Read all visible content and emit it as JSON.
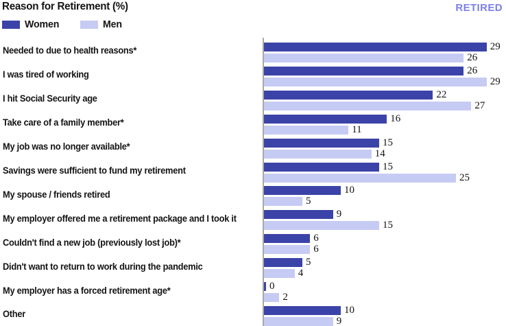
{
  "header": {
    "title": "Reason for Retirement (%)",
    "badge": "RETIRED"
  },
  "legend": [
    {
      "label": "Women",
      "color": "#3b43a8"
    },
    {
      "label": "Men",
      "color": "#c6cbf4"
    }
  ],
  "colors": {
    "women_bar": "#3b43a8",
    "men_bar": "#c6cbf4",
    "badge_text": "#7b80e8",
    "axis_line": "#a8a8a8",
    "value_text": "#101010"
  },
  "chart_data": {
    "type": "bar",
    "orientation": "horizontal",
    "title": "Reason for Retirement (%)",
    "legend_position": "top-left",
    "grid": false,
    "value_labels": true,
    "xlim": [
      0,
      31.5
    ],
    "categories": [
      "Needed to due to health reasons*",
      "I was tired of working",
      "I hit Social Security age",
      "Take care of a family member*",
      "My job was no longer available*",
      "Savings were sufficient to fund my retirement",
      "My spouse / friends retired",
      "My employer offered me a retirement package and I took it",
      "Couldn't find a new job (previously lost job)*",
      "Didn't want to return to work during the pandemic",
      "My employer has a forced retirement age*",
      "Other"
    ],
    "series": [
      {
        "name": "Women",
        "color": "#3b43a8",
        "values": [
          29,
          26,
          22,
          16,
          15,
          15,
          10,
          9,
          6,
          5,
          0,
          10
        ]
      },
      {
        "name": "Men",
        "color": "#c6cbf4",
        "values": [
          26,
          29,
          27,
          11,
          14,
          25,
          5,
          15,
          6,
          4,
          2,
          9
        ]
      }
    ]
  }
}
